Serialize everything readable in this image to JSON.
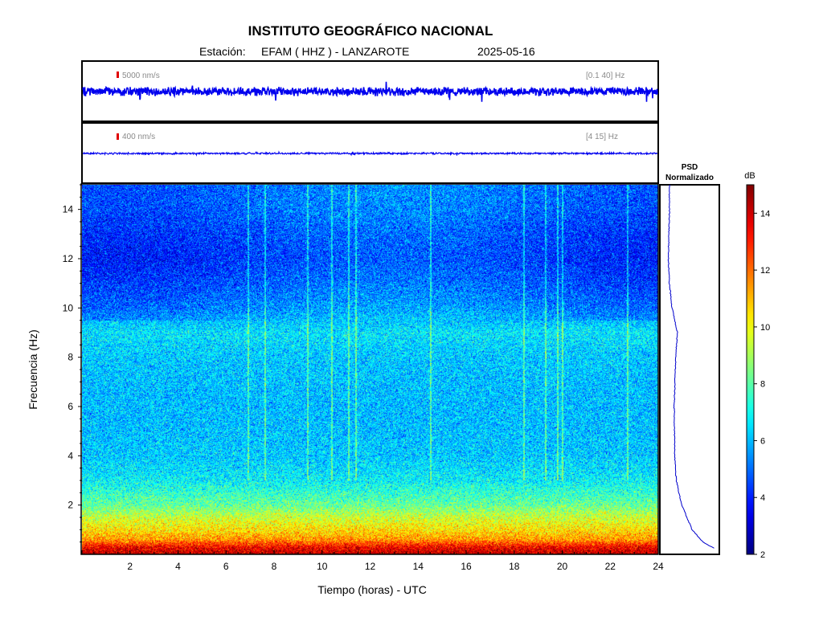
{
  "header": {
    "title": "INSTITUTO GEOGRÁFICO NACIONAL",
    "station_label": "Estación:",
    "station": "EFAM ( HHZ ) - LANZAROTE",
    "date": "2025-05-16"
  },
  "traces": [
    {
      "amplitude_label": "5000 nm/s",
      "band_label": "[0.1 40] Hz",
      "color": "#0000ee",
      "noise_level": 0.55
    },
    {
      "amplitude_label": "400 nm/s",
      "band_label": "[4 15] Hz",
      "color": "#0000ee",
      "noise_level": 0.12
    }
  ],
  "psd_title": [
    "PSD",
    "Normalizado"
  ],
  "colorbar": {
    "unit": "dB",
    "min": 2,
    "max": 15,
    "ticks": [
      "2",
      "4",
      "6",
      "8",
      "10",
      "12",
      "14"
    ]
  },
  "chart_data": {
    "type": "heatmap",
    "title": "INSTITUTO GEOGRÁFICO NACIONAL",
    "xlabel": "Tiempo (horas) - UTC",
    "ylabel": "Frecuencia  (Hz)",
    "xlim": [
      0,
      24
    ],
    "ylim": [
      0,
      15
    ],
    "x_ticks": [
      "2",
      "4",
      "6",
      "8",
      "10",
      "12",
      "14",
      "16",
      "18",
      "20",
      "22",
      "24"
    ],
    "y_ticks": [
      "2",
      "4",
      "6",
      "8",
      "10",
      "12",
      "14"
    ],
    "color_scale": "jet",
    "value_range_db": [
      2,
      15
    ],
    "frequency_profile_db": [
      {
        "f": 0.1,
        "db": 14
      },
      {
        "f": 0.3,
        "db": 13.5
      },
      {
        "f": 0.6,
        "db": 11.5
      },
      {
        "f": 1.0,
        "db": 10.5
      },
      {
        "f": 1.5,
        "db": 9.5
      },
      {
        "f": 2.0,
        "db": 8.2
      },
      {
        "f": 3.0,
        "db": 6.8
      },
      {
        "f": 4.0,
        "db": 6.2
      },
      {
        "f": 6.0,
        "db": 6.0
      },
      {
        "f": 8.0,
        "db": 6.2
      },
      {
        "f": 9.0,
        "db": 6.6
      },
      {
        "f": 10.0,
        "db": 5.6
      },
      {
        "f": 11.0,
        "db": 5.0
      },
      {
        "f": 12.0,
        "db": 4.6
      },
      {
        "f": 13.0,
        "db": 4.8
      },
      {
        "f": 14.0,
        "db": 5.2
      },
      {
        "f": 15.0,
        "db": 5.3
      }
    ],
    "psd_normalized": [
      {
        "f": 0.2,
        "p": 1.0
      },
      {
        "f": 0.5,
        "p": 0.75
      },
      {
        "f": 1.0,
        "p": 0.55
      },
      {
        "f": 1.5,
        "p": 0.45
      },
      {
        "f": 2.0,
        "p": 0.35
      },
      {
        "f": 3.0,
        "p": 0.25
      },
      {
        "f": 4.0,
        "p": 0.22
      },
      {
        "f": 6.0,
        "p": 0.21
      },
      {
        "f": 8.0,
        "p": 0.24
      },
      {
        "f": 9.0,
        "p": 0.27
      },
      {
        "f": 10.0,
        "p": 0.17
      },
      {
        "f": 11.0,
        "p": 0.12
      },
      {
        "f": 12.0,
        "p": 0.1
      },
      {
        "f": 13.0,
        "p": 0.11
      },
      {
        "f": 14.0,
        "p": 0.12
      },
      {
        "f": 15.0,
        "p": 0.12
      }
    ],
    "vertical_streaks_hours": [
      6.9,
      7.6,
      9.4,
      10.4,
      11.1,
      11.4,
      14.5,
      18.4,
      19.3,
      19.8,
      20.0,
      22.7
    ]
  }
}
